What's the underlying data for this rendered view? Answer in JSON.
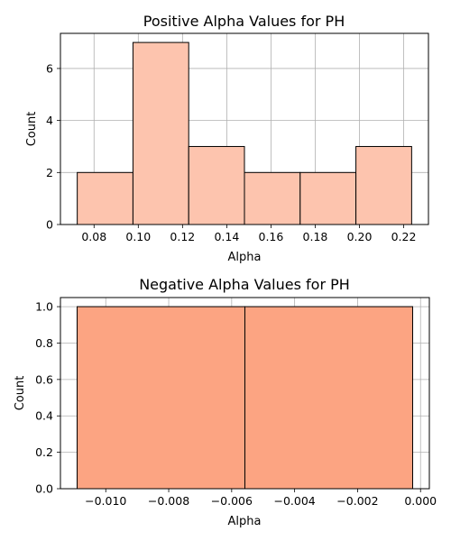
{
  "chart_data": [
    {
      "type": "bar",
      "title": "Positive Alpha Values for PH",
      "xlabel": "Alpha",
      "ylabel": "Count",
      "bar_color": "#fdc4ae",
      "edge_color": "#000000",
      "grid": true,
      "xlim": [
        0.0648,
        0.2312
      ],
      "ylim": [
        0,
        7.35
      ],
      "x_ticks": [
        0.08,
        0.1,
        0.12,
        0.14,
        0.16,
        0.18,
        0.2,
        0.22
      ],
      "x_tick_labels": [
        "0.08",
        "0.10",
        "0.12",
        "0.14",
        "0.16",
        "0.18",
        "0.20",
        "0.22"
      ],
      "y_ticks": [
        0,
        2,
        4,
        6
      ],
      "y_tick_labels": [
        "0",
        "2",
        "4",
        "6"
      ],
      "bins": [
        {
          "x0": 0.0724,
          "x1": 0.0976,
          "count": 2
        },
        {
          "x0": 0.0976,
          "x1": 0.1228,
          "count": 7
        },
        {
          "x0": 0.1228,
          "x1": 0.148,
          "count": 3
        },
        {
          "x0": 0.148,
          "x1": 0.1732,
          "count": 2
        },
        {
          "x0": 0.1732,
          "x1": 0.1984,
          "count": 2
        },
        {
          "x0": 0.1984,
          "x1": 0.2236,
          "count": 3
        }
      ]
    },
    {
      "type": "bar",
      "title": "Negative Alpha Values for PH",
      "xlabel": "Alpha",
      "ylabel": "Count",
      "bar_color": "#fca482",
      "edge_color": "#000000",
      "grid": true,
      "xlim": [
        -0.01144,
        0.00028
      ],
      "ylim": [
        0,
        1.05
      ],
      "x_ticks": [
        -0.01,
        -0.008,
        -0.006,
        -0.004,
        -0.002,
        0.0
      ],
      "x_tick_labels": [
        "−0.010",
        "−0.008",
        "−0.006",
        "−0.004",
        "−0.002",
        "0.000"
      ],
      "y_ticks": [
        0,
        0.2,
        0.4,
        0.6,
        0.8,
        1.0
      ],
      "y_tick_labels": [
        "0.0",
        "0.2",
        "0.4",
        "0.6",
        "0.8",
        "1.0"
      ],
      "bins": [
        {
          "x0": -0.01091,
          "x1": -0.00558,
          "count": 1
        },
        {
          "x0": -0.00558,
          "x1": -0.00025,
          "count": 1
        }
      ]
    }
  ]
}
